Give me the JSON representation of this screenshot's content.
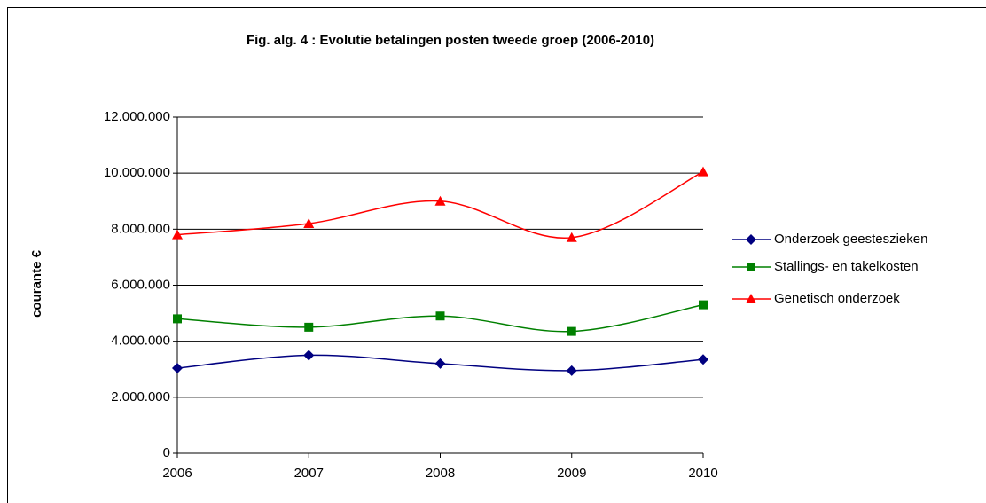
{
  "chart_data": {
    "type": "line",
    "title": "Fig. alg. 4 : Evolutie betalingen posten tweede groep (2006-2010)",
    "y_label": "courante €",
    "categories": [
      "2006",
      "2007",
      "2008",
      "2009",
      "2010"
    ],
    "series": [
      {
        "name": "Onderzoek geesteszieken",
        "color": "#000080",
        "marker": "diamond",
        "values": [
          3040000,
          3500000,
          3200000,
          2950000,
          3350000
        ]
      },
      {
        "name": "Stallings- en takelkosten",
        "color": "#008000",
        "marker": "square",
        "values": [
          4800000,
          4500000,
          4900000,
          4350000,
          5300000
        ]
      },
      {
        "name": "Genetisch onderzoek",
        "color": "#FF0000",
        "marker": "triangle",
        "values": [
          7800000,
          8200000,
          9000000,
          7700000,
          10050000
        ]
      }
    ],
    "smooth": true,
    "ylim": [
      0,
      12000000
    ],
    "yticks": [
      0,
      {
        "value": 2000000,
        "label": "2.000.000"
      },
      {
        "value": 4000000,
        "label": "4.000.000"
      },
      {
        "value": 6000000,
        "label": "6.000.000"
      },
      {
        "value": 8000000,
        "label": "8.000.000"
      },
      {
        "value": 10000000,
        "label": "10.000.000"
      },
      {
        "value": 12000000,
        "label": "12.000.000"
      }
    ],
    "grid": true,
    "legend": "right"
  }
}
